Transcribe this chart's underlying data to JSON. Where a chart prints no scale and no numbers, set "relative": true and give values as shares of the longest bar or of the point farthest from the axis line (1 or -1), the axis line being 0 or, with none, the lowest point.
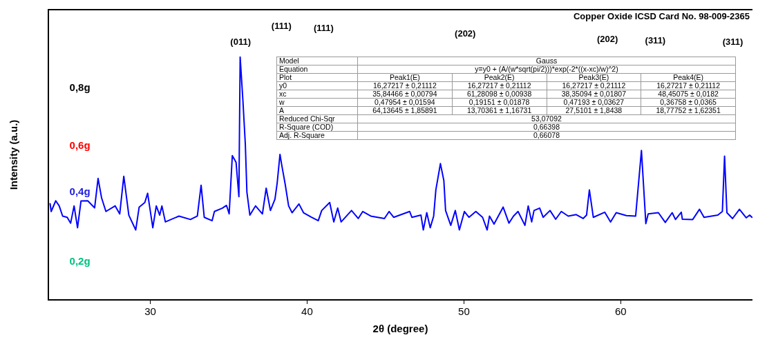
{
  "chart_data": [
    {
      "type": "line",
      "title": "Copper Oxide ICSD Card No. 98-009-2365",
      "xlabel": "2θ (degree)",
      "ylabel": "Intensity (a.u.)",
      "relative": true,
      "legend": false,
      "grid": false,
      "marker": "none",
      "line_style": "solid",
      "xlim": [
        23.5,
        68.4
      ],
      "xticks": [
        30,
        40,
        50,
        60
      ],
      "series": [
        {
          "color": "#0000ff",
          "x": [
            23.61,
            23.68,
            23.97,
            24.19,
            24.41,
            24.7,
            24.92,
            25.14,
            25.36,
            25.58,
            26.01,
            26.45,
            26.67,
            26.89,
            27.17,
            27.76,
            28.05,
            28.31,
            28.63,
            29.07,
            29.29,
            29.65,
            29.83,
            30.16,
            30.38,
            30.6,
            30.74,
            30.96,
            31.83,
            32.56,
            33.0,
            33.24,
            33.44,
            33.94,
            34.09,
            34.6,
            34.86,
            35.03,
            35.23,
            35.47,
            35.65,
            35.73,
            35.91,
            36.06,
            36.16,
            36.35,
            36.71,
            37.15,
            37.39,
            37.66,
            37.95,
            38.09,
            38.27,
            38.38,
            38.6,
            38.82,
            39.04,
            39.48,
            39.77,
            40.28,
            40.71,
            40.93,
            41.44,
            41.7,
            41.95,
            42.17,
            42.83,
            43.26,
            43.55,
            44.06,
            44.93,
            45.23,
            45.52,
            46.54,
            46.68,
            47.26,
            47.41,
            47.63,
            47.85,
            48.07,
            48.21,
            48.35,
            48.5,
            48.72,
            48.83,
            49.16,
            49.45,
            49.71,
            50.03,
            50.32,
            50.76,
            51.19,
            51.48,
            51.63,
            51.92,
            52.5,
            52.87,
            53.16,
            53.45,
            53.89,
            54.1,
            54.32,
            54.47,
            54.83,
            55.05,
            55.49,
            55.85,
            56.21,
            56.65,
            57.16,
            57.6,
            57.82,
            58.0,
            58.25,
            58.98,
            59.35,
            59.71,
            60.36,
            60.95,
            61.32,
            61.6,
            61.75,
            62.4,
            62.84,
            63.28,
            63.49,
            63.86,
            63.93,
            64.59,
            65.02,
            65.31,
            66.19,
            66.48,
            66.62,
            66.77,
            67.13,
            67.57,
            68.0,
            68.22,
            68.37
          ],
          "values": [
            0.396,
            0.364,
            0.408,
            0.387,
            0.345,
            0.34,
            0.316,
            0.387,
            0.297,
            0.407,
            0.408,
            0.379,
            0.5,
            0.421,
            0.364,
            0.387,
            0.354,
            0.509,
            0.349,
            0.288,
            0.382,
            0.401,
            0.439,
            0.297,
            0.387,
            0.349,
            0.387,
            0.321,
            0.345,
            0.331,
            0.345,
            0.472,
            0.34,
            0.326,
            0.364,
            0.378,
            0.389,
            0.354,
            0.594,
            0.566,
            0.425,
            1,
            0.816,
            0.641,
            0.444,
            0.349,
            0.387,
            0.354,
            0.46,
            0.368,
            0.415,
            0.481,
            0.599,
            0.556,
            0.477,
            0.387,
            0.359,
            0.395,
            0.359,
            0.34,
            0.326,
            0.368,
            0.401,
            0.321,
            0.378,
            0.321,
            0.368,
            0.335,
            0.364,
            0.345,
            0.335,
            0.364,
            0.34,
            0.364,
            0.34,
            0.349,
            0.288,
            0.359,
            0.297,
            0.345,
            0.453,
            0.505,
            0.561,
            0.491,
            0.368,
            0.307,
            0.368,
            0.288,
            0.364,
            0.34,
            0.364,
            0.34,
            0.288,
            0.345,
            0.312,
            0.382,
            0.316,
            0.345,
            0.364,
            0.307,
            0.387,
            0.321,
            0.368,
            0.378,
            0.34,
            0.368,
            0.332,
            0.364,
            0.345,
            0.351,
            0.335,
            0.349,
            0.453,
            0.34,
            0.361,
            0.321,
            0.359,
            0.347,
            0.345,
            0.615,
            0.314,
            0.354,
            0.359,
            0.319,
            0.359,
            0.331,
            0.361,
            0.332,
            0.331,
            0.373,
            0.34,
            0.349,
            0.364,
            0.592,
            0.359,
            0.335,
            0.373,
            0.338,
            0.349,
            0.34
          ]
        }
      ],
      "annotations": [
        "(011)",
        "(111)",
        "(111)",
        "(202)",
        "(202)",
        "(311)",
        "(311)",
        "0,8g",
        "0,6g",
        "0,4g",
        "0,2g"
      ]
    },
    {
      "type": "other",
      "y_categories": [
        "Model",
        "Equation",
        "Plot",
        "y0",
        "xc",
        "w",
        "A",
        "Reduced Chi-Sqr",
        "R-Square (COD)",
        "Adj. R-Square"
      ],
      "cell_labels": [
        [
          "Gauss"
        ],
        [
          "y=y0 + (A/(w*sqrt(pi/2)))*exp(-2*((x-xc)/w)^2)"
        ],
        [
          "Peak1(E)",
          "Peak2(E)",
          "Peak3(E)",
          "Peak4(E)"
        ],
        [
          "16,27217 ± 0,21112",
          "16,27217 ± 0,21112",
          "16,27217 ± 0,21112",
          "16,27217 ± 0,21112"
        ],
        [
          "35,84466 ± 0,00794",
          "61,28098 ± 0,00938",
          "38,35094 ± 0,01807",
          "48,45075 ± 0,0182"
        ],
        [
          "0,47954 ± 0,01594",
          "0,19151 ± 0,01878",
          "0,47193 ± 0,03627",
          "0,36758 ± 0,0365"
        ],
        [
          "64,13645 ± 1,85891",
          "13,70361 ± 1,16731",
          "27,5101 ± 1,8438",
          "18,77752 ± 1,62351"
        ],
        [
          "53,07092"
        ],
        [
          "0,66398"
        ],
        [
          "0,66078"
        ]
      ]
    }
  ]
}
